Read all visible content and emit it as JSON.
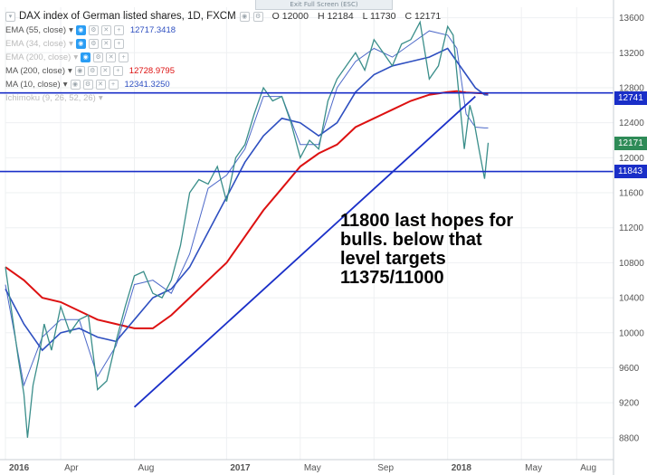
{
  "banner": {
    "exit_label": "Exit Full Screen (ESC)"
  },
  "legend": {
    "title": "DAX index of German listed shares, 1D, FXCM",
    "ohlc": {
      "o": "O 12000",
      "h": "H 12184",
      "l": "L 11730",
      "c": "C 12171"
    },
    "indicators": [
      {
        "name": "EMA (55, close)",
        "value": "12717.3418",
        "color": "#2e4fc0",
        "visible": true
      },
      {
        "name": "EMA (34, close)",
        "value": "",
        "color": "#bbbbbb",
        "visible": false
      },
      {
        "name": "EMA (200, close)",
        "value": "",
        "color": "#bbbbbb",
        "visible": false
      },
      {
        "name": "MA (200, close)",
        "value": "12728.9795",
        "color": "#dd1111",
        "visible": true
      },
      {
        "name": "MA (10, close)",
        "value": "12341.3250",
        "color": "#2e4fc0",
        "visible": true
      },
      {
        "name": "Ichimoku (9, 26, 52, 26)",
        "value": "",
        "color": "#bbbbbb",
        "visible": false
      }
    ]
  },
  "axis_tags": {
    "resistance": "12741",
    "last": "12171",
    "support": "11843"
  },
  "annotation": {
    "line1": "11800 last hopes for",
    "line2": "bulls. below that",
    "line3": "level targets",
    "line4": "11375/11000"
  },
  "colors": {
    "candle_up": "#3a8e8a",
    "candle_down": "#c03a3a",
    "ema55": "#2e4fc0",
    "ma200": "#dd1111",
    "ma10": "#2e4fc0",
    "trendline": "#1a2fc8",
    "hline": "#1a2fc8",
    "grid": "#eef0f2",
    "tag_blue": "#1a2fc8",
    "tag_green": "#2e8b57"
  },
  "chart_data": {
    "type": "line",
    "title": "DAX index of German listed shares, 1D, FXCM",
    "x_ticks": [
      "2016",
      "Apr",
      "Aug",
      "2017",
      "May",
      "Sep",
      "2018",
      "May",
      "Aug"
    ],
    "x_tick_positions": [
      0.0,
      3.0,
      7.0,
      12.0,
      16.0,
      20.0,
      24.0,
      28.0,
      31.0
    ],
    "y_ticks": [
      8800,
      9200,
      9600,
      10000,
      10400,
      10800,
      11200,
      11600,
      12000,
      12400,
      12800,
      13200,
      13600
    ],
    "ylim": [
      8550,
      13720
    ],
    "xlim": [
      0.0,
      33.0
    ],
    "series": [
      {
        "name": "DAX",
        "x": [
          0.0,
          0.3,
          0.7,
          1.0,
          1.2,
          1.5,
          1.8,
          2.1,
          2.5,
          3.0,
          3.5,
          4.0,
          4.5,
          5.0,
          5.5,
          6.0,
          6.5,
          7.0,
          7.5,
          8.0,
          8.5,
          9.0,
          9.5,
          10.0,
          10.5,
          11.0,
          11.5,
          12.0,
          12.5,
          13.0,
          13.5,
          14.0,
          14.5,
          15.0,
          15.5,
          16.0,
          16.5,
          17.0,
          17.5,
          18.0,
          18.5,
          19.0,
          19.5,
          20.0,
          20.5,
          21.0,
          21.5,
          22.0,
          22.5,
          23.0,
          23.5,
          24.0,
          24.3,
          24.6,
          24.9,
          25.2,
          25.4,
          25.7,
          26.0,
          26.2
        ],
        "values": [
          10750,
          10300,
          9700,
          9300,
          8800,
          9400,
          9700,
          10100,
          9800,
          10300,
          10000,
          10150,
          10200,
          9350,
          9450,
          9900,
          10300,
          10650,
          10700,
          10450,
          10400,
          10600,
          11000,
          11600,
          11750,
          11700,
          11900,
          11500,
          12000,
          12150,
          12500,
          12800,
          12650,
          12700,
          12400,
          12000,
          12200,
          12100,
          12650,
          12900,
          13050,
          13200,
          13000,
          13350,
          13200,
          13050,
          13300,
          13350,
          13550,
          12900,
          13050,
          13500,
          13400,
          12750,
          12100,
          12600,
          12450,
          12100,
          11760,
          12171
        ]
      },
      {
        "name": "EMA (55, close)",
        "x": [
          0.0,
          1.0,
          2.0,
          3.0,
          4.0,
          5.0,
          6.0,
          7.0,
          8.0,
          9.0,
          10.0,
          11.0,
          12.0,
          13.0,
          14.0,
          15.0,
          16.0,
          17.0,
          18.0,
          19.0,
          20.0,
          21.0,
          22.0,
          23.0,
          24.0,
          24.5,
          25.0,
          25.5,
          26.0,
          26.2
        ],
        "values": [
          10500,
          10100,
          9800,
          10000,
          10050,
          9950,
          9900,
          10150,
          10400,
          10500,
          10750,
          11150,
          11550,
          11950,
          12250,
          12450,
          12400,
          12250,
          12400,
          12750,
          12950,
          13050,
          13100,
          13150,
          13250,
          13100,
          12950,
          12800,
          12720,
          12717
        ]
      },
      {
        "name": "MA (200, close)",
        "x": [
          0.0,
          1.0,
          2.0,
          3.0,
          4.0,
          5.0,
          6.0,
          7.0,
          8.0,
          9.0,
          10.0,
          11.0,
          12.0,
          13.0,
          14.0,
          15.0,
          16.0,
          17.0,
          18.0,
          19.0,
          20.0,
          21.0,
          22.0,
          23.0,
          24.0,
          24.5,
          25.0,
          25.5,
          26.0,
          26.2
        ],
        "values": [
          10750,
          10600,
          10400,
          10350,
          10250,
          10150,
          10100,
          10050,
          10050,
          10200,
          10400,
          10600,
          10800,
          11100,
          11400,
          11650,
          11900,
          12050,
          12150,
          12350,
          12450,
          12550,
          12650,
          12720,
          12750,
          12760,
          12745,
          12740,
          12735,
          12729
        ]
      },
      {
        "name": "MA (10, close)",
        "x": [
          0.0,
          1.0,
          2.0,
          3.0,
          4.0,
          5.0,
          6.0,
          7.0,
          8.0,
          9.0,
          10.0,
          11.0,
          12.0,
          13.0,
          14.0,
          15.0,
          16.0,
          17.0,
          18.0,
          19.0,
          20.0,
          21.0,
          22.0,
          23.0,
          24.0,
          24.5,
          25.0,
          25.5,
          26.0,
          26.2
        ],
        "values": [
          10550,
          9400,
          9950,
          10150,
          10150,
          9500,
          9850,
          10550,
          10600,
          10450,
          10900,
          11650,
          11800,
          12100,
          12700,
          12700,
          12150,
          12150,
          12800,
          13100,
          13250,
          13150,
          13300,
          13450,
          13400,
          13250,
          12500,
          12350,
          12341,
          12341
        ]
      }
    ],
    "trendline": {
      "x": [
        7.0,
        25.5
      ],
      "y": [
        9150,
        12700
      ]
    },
    "hlines": [
      12741,
      11843
    ]
  }
}
